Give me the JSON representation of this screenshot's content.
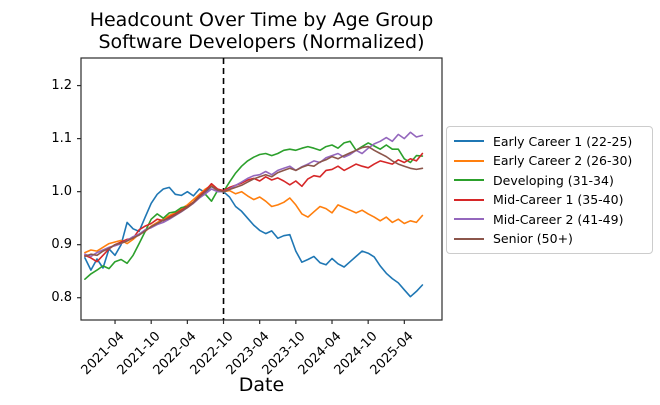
{
  "chart_data": {
    "type": "line",
    "title": "Headcount Over Time by Age Group",
    "subtitle": "Software Developers (Normalized)",
    "xlabel": "Date",
    "ylabel": "",
    "grid": false,
    "legend_position": "right-outside",
    "x_start_month": "2020-11",
    "x_step_months": 1,
    "x_tick_labels": [
      "2021-04",
      "2021-10",
      "2022-04",
      "2022-10",
      "2023-04",
      "2023-10",
      "2024-04",
      "2024-10",
      "2025-04"
    ],
    "x_tick_month_indices": [
      5,
      11,
      17,
      23,
      29,
      35,
      41,
      47,
      53
    ],
    "y_tick_labels": [
      "0.8",
      "0.9",
      "1.0",
      "1.1",
      "1.2"
    ],
    "y_tick_values": [
      0.8,
      0.9,
      1.0,
      1.1,
      1.2
    ],
    "ylim": [
      0.758,
      1.252
    ],
    "vline": {
      "month": "2022-10",
      "month_index": 23,
      "style": "dashed",
      "color": "#000000"
    },
    "axis_color": "#2b2b2b",
    "series": [
      {
        "name": "Early Career 1 (22-25)",
        "color": "#1f77b4",
        "values": [
          0.875,
          0.852,
          0.873,
          0.856,
          0.892,
          0.88,
          0.9,
          0.942,
          0.93,
          0.925,
          0.952,
          0.978,
          0.995,
          1.005,
          1.008,
          0.995,
          0.993,
          1.0,
          0.992,
          1.005,
          0.998,
          1.01,
          1.002,
          1.0,
          0.99,
          0.972,
          0.963,
          0.95,
          0.937,
          0.927,
          0.921,
          0.926,
          0.912,
          0.917,
          0.919,
          0.888,
          0.867,
          0.872,
          0.878,
          0.866,
          0.862,
          0.874,
          0.864,
          0.858,
          0.868,
          0.878,
          0.888,
          0.884,
          0.877,
          0.86,
          0.846,
          0.836,
          0.828,
          0.815,
          0.802,
          0.812,
          0.824
        ]
      },
      {
        "name": "Early Career 2 (26-30)",
        "color": "#ff7f0e",
        "values": [
          0.885,
          0.89,
          0.888,
          0.895,
          0.902,
          0.905,
          0.908,
          0.902,
          0.91,
          0.92,
          0.925,
          0.935,
          0.942,
          0.948,
          0.955,
          0.96,
          0.968,
          0.975,
          0.985,
          0.995,
          1.005,
          1.012,
          1.0,
          1.0,
          1.002,
          0.996,
          1.0,
          0.992,
          0.985,
          0.99,
          0.982,
          0.972,
          0.975,
          0.98,
          0.988,
          0.975,
          0.958,
          0.952,
          0.962,
          0.972,
          0.968,
          0.96,
          0.975,
          0.97,
          0.965,
          0.96,
          0.965,
          0.958,
          0.952,
          0.945,
          0.952,
          0.942,
          0.948,
          0.94,
          0.945,
          0.942,
          0.955
        ]
      },
      {
        "name": "Developing (31-34)",
        "color": "#2ca02c",
        "values": [
          0.835,
          0.845,
          0.852,
          0.86,
          0.855,
          0.868,
          0.872,
          0.865,
          0.88,
          0.902,
          0.925,
          0.948,
          0.958,
          0.95,
          0.96,
          0.962,
          0.97,
          0.972,
          0.98,
          0.992,
          0.995,
          0.982,
          1.002,
          1.0,
          1.018,
          1.035,
          1.048,
          1.058,
          1.065,
          1.07,
          1.072,
          1.068,
          1.072,
          1.078,
          1.08,
          1.078,
          1.082,
          1.085,
          1.082,
          1.078,
          1.085,
          1.088,
          1.082,
          1.092,
          1.095,
          1.078,
          1.085,
          1.092,
          1.086,
          1.08,
          1.088,
          1.08,
          1.08,
          1.062,
          1.055,
          1.068,
          1.067
        ]
      },
      {
        "name": "Mid-Career 1 (35-40)",
        "color": "#d62728",
        "values": [
          0.88,
          0.875,
          0.868,
          0.88,
          0.892,
          0.9,
          0.905,
          0.91,
          0.912,
          0.928,
          0.935,
          0.94,
          0.948,
          0.945,
          0.952,
          0.958,
          0.965,
          0.972,
          0.98,
          0.992,
          1.002,
          1.015,
          1.005,
          1.002,
          1.008,
          1.012,
          1.016,
          1.022,
          1.025,
          1.02,
          1.028,
          1.022,
          1.026,
          1.02,
          1.013,
          1.02,
          1.01,
          1.024,
          1.03,
          1.028,
          1.04,
          1.042,
          1.048,
          1.04,
          1.046,
          1.052,
          1.048,
          1.045,
          1.052,
          1.058,
          1.055,
          1.052,
          1.06,
          1.055,
          1.062,
          1.058,
          1.072
        ]
      },
      {
        "name": "Mid-Career 2 (41-49)",
        "color": "#9467bd",
        "values": [
          0.882,
          0.878,
          0.885,
          0.89,
          0.895,
          0.898,
          0.902,
          0.908,
          0.915,
          0.92,
          0.928,
          0.932,
          0.938,
          0.942,
          0.948,
          0.955,
          0.962,
          0.97,
          0.978,
          0.988,
          0.996,
          1.005,
          1.0,
          1.0,
          1.005,
          1.012,
          1.018,
          1.025,
          1.03,
          1.032,
          1.038,
          1.032,
          1.04,
          1.044,
          1.048,
          1.04,
          1.047,
          1.052,
          1.058,
          1.055,
          1.064,
          1.068,
          1.072,
          1.065,
          1.07,
          1.078,
          1.072,
          1.082,
          1.09,
          1.095,
          1.102,
          1.095,
          1.108,
          1.1,
          1.112,
          1.103,
          1.106
        ]
      },
      {
        "name": "Senior (50+)",
        "color": "#8c564b",
        "values": [
          0.878,
          0.882,
          0.88,
          0.888,
          0.893,
          0.9,
          0.903,
          0.907,
          0.913,
          0.918,
          0.926,
          0.934,
          0.94,
          0.946,
          0.95,
          0.956,
          0.963,
          0.97,
          0.979,
          0.99,
          1.0,
          1.01,
          1.003,
          1.0,
          1.004,
          1.008,
          1.012,
          1.018,
          1.024,
          1.028,
          1.032,
          1.028,
          1.036,
          1.04,
          1.044,
          1.04,
          1.046,
          1.05,
          1.048,
          1.056,
          1.06,
          1.066,
          1.062,
          1.068,
          1.073,
          1.078,
          1.083,
          1.085,
          1.078,
          1.072,
          1.066,
          1.058,
          1.052,
          1.048,
          1.044,
          1.042,
          1.044
        ]
      }
    ]
  }
}
